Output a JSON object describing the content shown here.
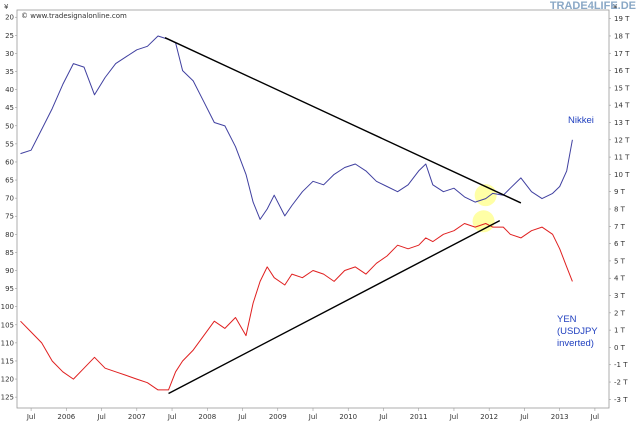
{
  "brand": "TRADE4LIFE.DE",
  "source": "© www.tradesignalonline.com",
  "chart_data": {
    "type": "line",
    "left_axis_unit": "¥",
    "right_axis_unit": "¥",
    "left_ticks": [
      "20",
      "25",
      "30",
      "35",
      "40",
      "45",
      "50",
      "55",
      "60",
      "65",
      "70",
      "75",
      "80",
      "85",
      "90",
      "95",
      "100",
      "105",
      "110",
      "115",
      "120",
      "125"
    ],
    "right_ticks": [
      "19 T",
      "18 T",
      "17 T",
      "16 T",
      "15 T",
      "14 T",
      "13 T",
      "12 T",
      "11 T",
      "10 T",
      "9 T",
      "8 T",
      "7 T",
      "6 T",
      "5 T",
      "4 T",
      "3 T",
      "2 T",
      "1 T",
      "0 T",
      "-1 T",
      "-2 T",
      "-3 T"
    ],
    "x_ticks": [
      "Jul",
      "2006",
      "Jul",
      "2007",
      "Jul",
      "2008",
      "Jul",
      "2009",
      "Jul",
      "2010",
      "Jul",
      "2011",
      "Jul",
      "2012",
      "Jul",
      "2013",
      "Jul"
    ],
    "series": [
      {
        "name": "Nikkei",
        "color": "#4040a0",
        "x": [
          2005.35,
          2005.5,
          2005.65,
          2005.8,
          2005.95,
          2006.1,
          2006.25,
          2006.4,
          2006.55,
          2006.7,
          2006.85,
          2007.0,
          2007.15,
          2007.3,
          2007.45,
          2007.55,
          2007.65,
          2007.8,
          2007.95,
          2008.1,
          2008.25,
          2008.4,
          2008.55,
          2008.65,
          2008.75,
          2008.85,
          2008.95,
          2009.1,
          2009.2,
          2009.35,
          2009.5,
          2009.65,
          2009.8,
          2009.95,
          2010.1,
          2010.25,
          2010.4,
          2010.55,
          2010.7,
          2010.85,
          2011.0,
          2011.1,
          2011.2,
          2011.35,
          2011.5,
          2011.65,
          2011.8,
          2011.95,
          2012.05,
          2012.2,
          2012.3,
          2012.45,
          2012.6,
          2012.75,
          2012.9,
          2013.0,
          2013.1,
          2013.18
        ],
        "y": [
          11.2,
          11.4,
          12.6,
          13.8,
          15.2,
          16.4,
          16.2,
          14.6,
          15.6,
          16.4,
          16.8,
          17.2,
          17.4,
          18.0,
          17.8,
          17.6,
          16.0,
          15.4,
          14.2,
          13.0,
          12.8,
          11.6,
          10.0,
          8.4,
          7.4,
          8.0,
          8.8,
          7.6,
          8.2,
          9.0,
          9.6,
          9.4,
          10.0,
          10.4,
          10.6,
          10.2,
          9.6,
          9.3,
          9.0,
          9.4,
          10.2,
          10.6,
          9.4,
          9.0,
          9.2,
          8.7,
          8.4,
          8.6,
          8.9,
          8.8,
          9.2,
          9.8,
          9.0,
          8.6,
          8.9,
          9.3,
          10.2,
          12.0
        ]
      },
      {
        "name": "YEN (USDJPY inverted)",
        "color": "#e02020",
        "x": [
          2005.35,
          2005.5,
          2005.65,
          2005.8,
          2005.95,
          2006.1,
          2006.25,
          2006.4,
          2006.55,
          2006.7,
          2006.85,
          2007.0,
          2007.15,
          2007.3,
          2007.45,
          2007.55,
          2007.65,
          2007.8,
          2007.95,
          2008.1,
          2008.25,
          2008.4,
          2008.55,
          2008.65,
          2008.75,
          2008.85,
          2008.95,
          2009.1,
          2009.2,
          2009.35,
          2009.5,
          2009.65,
          2009.8,
          2009.95,
          2010.1,
          2010.25,
          2010.4,
          2010.55,
          2010.7,
          2010.85,
          2011.0,
          2011.1,
          2011.2,
          2011.35,
          2011.5,
          2011.65,
          2011.8,
          2011.95,
          2012.05,
          2012.2,
          2012.3,
          2012.45,
          2012.6,
          2012.75,
          2012.9,
          2013.0,
          2013.1,
          2013.18
        ],
        "y": [
          104,
          107,
          110,
          115,
          118,
          120,
          117,
          114,
          117,
          118,
          119,
          120,
          121,
          123,
          123,
          118,
          115,
          112,
          108,
          104,
          106,
          103,
          108,
          99,
          93,
          89,
          92,
          94,
          91,
          92,
          90,
          91,
          93,
          90,
          89,
          91,
          88,
          86,
          83,
          84,
          83,
          81,
          82,
          80,
          79,
          77,
          78,
          77,
          78,
          78,
          80,
          81,
          79,
          78,
          80,
          84,
          89,
          93
        ]
      }
    ],
    "trendlines": [
      {
        "x1": 2007.4,
        "y1": 17.9,
        "x2": 2012.45,
        "y2": 8.35,
        "axis": "right"
      },
      {
        "x1": 2007.45,
        "y1": 124.0,
        "x2": 2012.15,
        "y2": 76.2,
        "axis": "left"
      }
    ],
    "highlights": [
      {
        "x": 2011.95,
        "y": 8.8,
        "axis": "right"
      },
      {
        "x": 2011.92,
        "y": 76.4,
        "axis": "left"
      }
    ],
    "labels": {
      "nikkei": "Nikkei",
      "yen_1": "YEN",
      "yen_2": "(USDJPY",
      "yen_3": "inverted)"
    },
    "xlim": [
      2005.3,
      2013.7
    ],
    "left_ylim": [
      18,
      128
    ],
    "right_ylim": [
      -3.5,
      19.5
    ]
  }
}
